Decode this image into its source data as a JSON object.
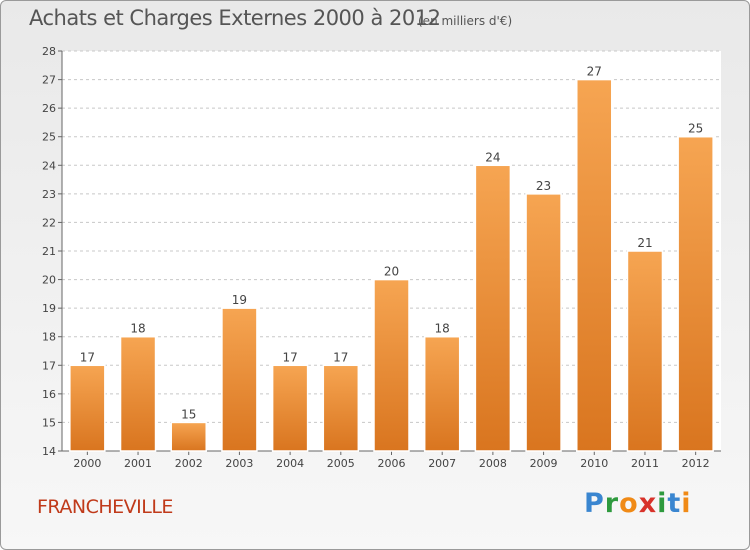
{
  "title": "Achats et Charges Externes 2000 à 2012",
  "subtitle": "(en milliers d'€)",
  "location_label": "FRANCHEVILLE",
  "logo": {
    "text": "Proxiti",
    "letters": [
      "P",
      "r",
      "o",
      "x",
      "i",
      "t",
      "i"
    ]
  },
  "colors": {
    "bar_light": "#f6a552",
    "bar_dark": "#d9751f",
    "title": "#555555",
    "location": "#c03a1a",
    "grid": "#c8c8c8"
  },
  "chart_data": {
    "type": "bar",
    "title": "Achats et Charges Externes 2000 à 2012",
    "subtitle": "(en milliers d'€)",
    "xlabel": "",
    "ylabel": "",
    "categories": [
      "2000",
      "2001",
      "2002",
      "2003",
      "2004",
      "2005",
      "2006",
      "2007",
      "2008",
      "2009",
      "2010",
      "2011",
      "2012"
    ],
    "values": [
      17,
      18,
      15,
      19,
      17,
      17,
      20,
      18,
      24,
      23,
      27,
      21,
      25
    ],
    "ylim": [
      14,
      28
    ],
    "yticks": [
      14,
      15,
      16,
      17,
      18,
      19,
      20,
      21,
      22,
      23,
      24,
      25,
      26,
      27,
      28
    ],
    "grid": true,
    "legend": "none"
  }
}
